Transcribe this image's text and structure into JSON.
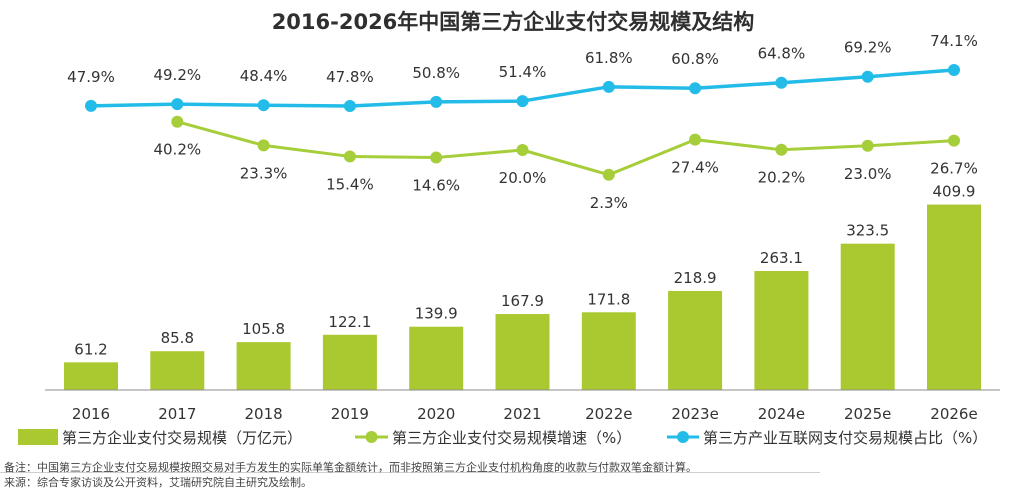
{
  "title": "2016-2026年中国第三方企业支付交易规模及结构",
  "chart_data": {
    "type": "bar",
    "categories": [
      "2016",
      "2017",
      "2018",
      "2019",
      "2020",
      "2021",
      "2022e",
      "2023e",
      "2024e",
      "2025e",
      "2026e"
    ],
    "series": [
      {
        "name": "第三方企业支付交易规模（万亿元）",
        "kind": "bar",
        "values": [
          61.2,
          85.8,
          105.8,
          122.1,
          139.9,
          167.9,
          171.8,
          218.9,
          263.1,
          323.5,
          409.9
        ],
        "labels": [
          "61.2",
          "85.8",
          "105.8",
          "122.1",
          "139.9",
          "167.9",
          "171.8",
          "218.9",
          "263.1",
          "323.5",
          "409.9"
        ],
        "color": "#aac931"
      },
      {
        "name": "第三方企业支付交易规模增速（%）",
        "kind": "line",
        "values": [
          null,
          40.2,
          23.3,
          15.4,
          14.6,
          20.0,
          2.3,
          27.4,
          20.2,
          23.0,
          26.7
        ],
        "labels": [
          "",
          "40.2%",
          "23.3%",
          "15.4%",
          "14.6%",
          "20.0%",
          "2.3%",
          "27.4%",
          "20.2%",
          "23.0%",
          "26.7%"
        ],
        "color": "#a6cd3a"
      },
      {
        "name": "第三方产业互联网支付交易规模占比（%）",
        "kind": "line",
        "values": [
          47.9,
          49.2,
          48.4,
          47.8,
          50.8,
          51.4,
          61.8,
          60.8,
          64.8,
          69.2,
          74.1
        ],
        "labels": [
          "47.9%",
          "49.2%",
          "48.4%",
          "47.8%",
          "50.8%",
          "51.4%",
          "61.8%",
          "60.8%",
          "64.8%",
          "69.2%",
          "74.1%"
        ],
        "color": "#23bce8"
      }
    ],
    "ylim": [
      0,
      420
    ],
    "grid": false,
    "legend": "bottom"
  },
  "notes": {
    "remark": "备注：中国第三方企业支付交易规模按照交易对手方发生的实际单笔金额统计，而非按照第三方企业支付机构角度的收款与付款双笔金额计算。",
    "source": "来源：综合专家访谈及公开资料，艾瑞研究院自主研究及绘制。"
  }
}
